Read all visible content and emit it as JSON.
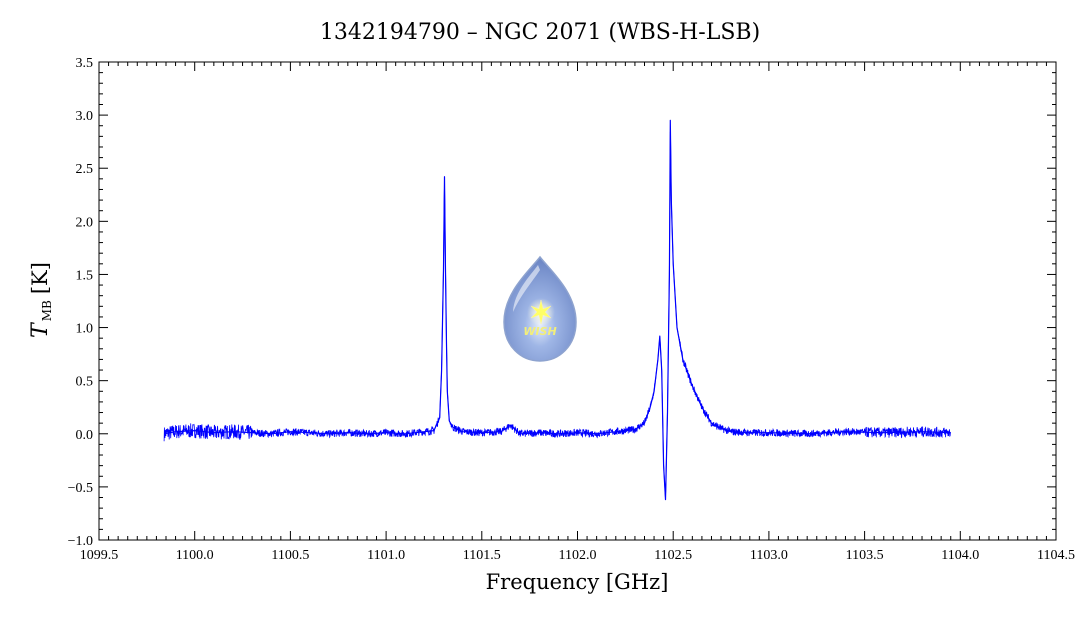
{
  "chart_data": {
    "type": "line",
    "title": "1342194790 – NGC 2071 (WBS-H-LSB)",
    "xlabel": "Frequency [GHz]",
    "ylabel_symbol": "T",
    "ylabel_subscript": "MB",
    "ylabel_unit": "[K]",
    "xlim": [
      1099.5,
      1104.5
    ],
    "ylim": [
      -1.0,
      3.5
    ],
    "x_ticks": [
      "1099.5",
      "1100.0",
      "1100.5",
      "1101.0",
      "1101.5",
      "1102.0",
      "1102.5",
      "1103.0",
      "1103.5",
      "1104.0",
      "1104.5"
    ],
    "y_ticks": [
      "−1.0",
      "−0.5",
      "0.0",
      "0.5",
      "1.0",
      "1.5",
      "2.0",
      "2.5",
      "3.0",
      "3.5"
    ],
    "grid": false,
    "line_color": "#0000ff",
    "series": [
      {
        "x": [
          1099.84,
          1099.9,
          1100.0,
          1100.1,
          1100.2,
          1100.3,
          1100.4,
          1100.5,
          1100.6,
          1100.7,
          1100.8,
          1100.9,
          1101.0,
          1101.1,
          1101.2,
          1101.25,
          1101.28,
          1101.29,
          1101.3,
          1101.305,
          1101.31,
          1101.315,
          1101.32,
          1101.33,
          1101.35,
          1101.4,
          1101.5,
          1101.6,
          1101.65,
          1101.7,
          1101.8,
          1101.9,
          1102.0,
          1102.1,
          1102.2,
          1102.3,
          1102.35,
          1102.38,
          1102.4,
          1102.42,
          1102.43,
          1102.44,
          1102.45,
          1102.46,
          1102.47,
          1102.48,
          1102.485,
          1102.49,
          1102.5,
          1102.52,
          1102.55,
          1102.6,
          1102.65,
          1102.7,
          1102.75,
          1102.8,
          1102.9,
          1103.0,
          1103.2,
          1103.4,
          1103.6,
          1103.8,
          1103.95
        ],
        "y": [
          0.0,
          0.02,
          0.03,
          0.01,
          0.02,
          0.01,
          0.0,
          0.02,
          0.01,
          0.0,
          0.01,
          0.0,
          0.01,
          0.0,
          0.02,
          0.03,
          0.15,
          0.6,
          1.55,
          2.42,
          1.6,
          0.9,
          0.4,
          0.12,
          0.06,
          0.02,
          0.01,
          0.02,
          0.08,
          0.0,
          0.01,
          0.0,
          0.01,
          0.0,
          0.02,
          0.04,
          0.1,
          0.25,
          0.4,
          0.7,
          0.92,
          0.6,
          -0.3,
          -0.62,
          0.2,
          1.5,
          2.95,
          2.2,
          1.6,
          1.0,
          0.7,
          0.45,
          0.25,
          0.1,
          0.05,
          0.02,
          0.01,
          0.01,
          0.0,
          0.02,
          0.01,
          0.02,
          0.01
        ]
      }
    ]
  },
  "watermark_text": "WISH"
}
